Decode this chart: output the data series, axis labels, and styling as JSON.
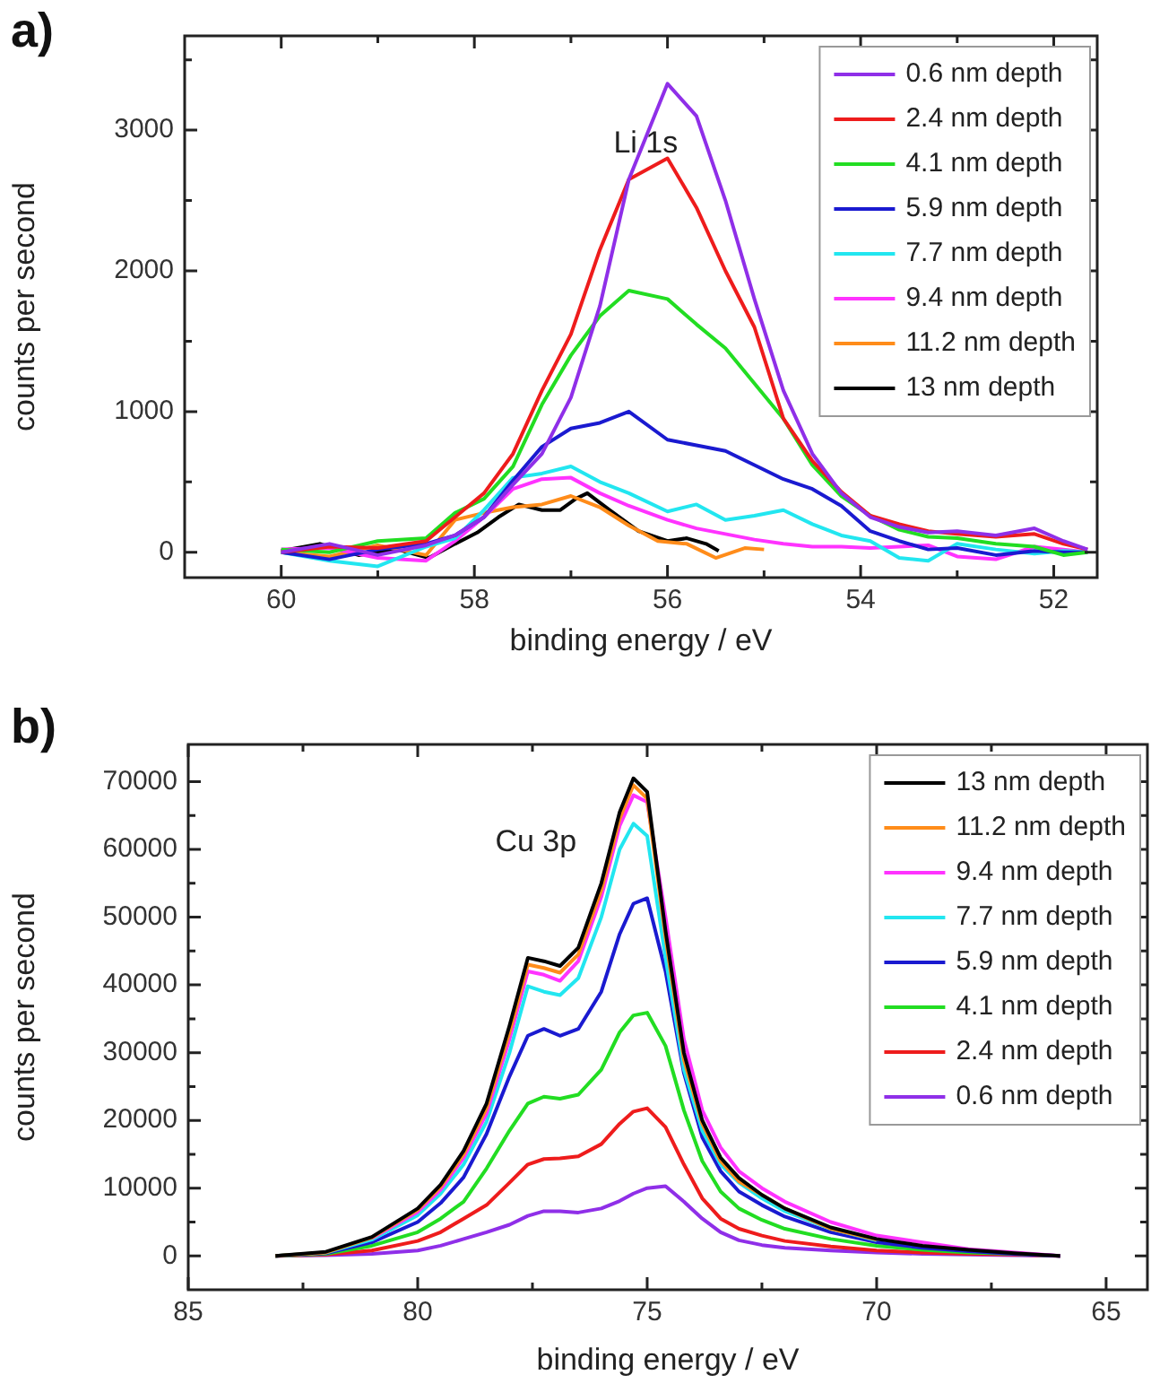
{
  "chart_data": [
    {
      "type": "line",
      "title": "a)",
      "xlabel": "binding energy / eV",
      "ylabel": "counts per second",
      "annotations": [
        "Li 1s"
      ],
      "xlim": [
        61,
        51.55
      ],
      "ylim": [
        -180,
        3670
      ],
      "xticks": [
        60,
        {
          "value": 59,
          "label": null
        },
        58,
        {
          "value": 57,
          "label": null
        },
        56,
        {
          "value": 55,
          "label": null
        },
        54,
        {
          "value": 53,
          "label": null
        },
        52
      ],
      "yticks": [
        0,
        {
          "value": 500,
          "label": null
        },
        1000,
        {
          "value": 1500,
          "label": null
        },
        2000,
        {
          "value": 2500,
          "label": null
        },
        3000,
        {
          "value": 3500,
          "label": null
        }
      ],
      "legend": "top right",
      "x": [
        60,
        59.5,
        59,
        58.5,
        58.2,
        57.9,
        57.6,
        57.3,
        57.0,
        56.7,
        56.4,
        56.0,
        55.7,
        55.4,
        55.1,
        54.8,
        54.5,
        54.2,
        53.9,
        53.6,
        53.3,
        53.0,
        52.6,
        52.2,
        51.9,
        51.65
      ],
      "series": [
        {
          "name": "0.6 nm depth",
          "color": "#8f2fe8",
          "values": [
            0,
            60,
            -20,
            50,
            120,
            250,
            480,
            700,
            1100,
            1750,
            2650,
            3330,
            3100,
            2500,
            1800,
            1150,
            700,
            420,
            250,
            180,
            140,
            150,
            120,
            170,
            80,
            20
          ]
        },
        {
          "name": "2.4 nm depth",
          "color": "#ee1c1c",
          "values": [
            0,
            40,
            30,
            80,
            250,
            420,
            700,
            1150,
            1550,
            2150,
            2650,
            2800,
            2450,
            2000,
            1600,
            950,
            650,
            430,
            260,
            200,
            150,
            130,
            110,
            130,
            60,
            20
          ]
        },
        {
          "name": "4.1 nm depth",
          "color": "#22dd22",
          "values": [
            20,
            0,
            80,
            100,
            280,
            380,
            610,
            1050,
            1400,
            1680,
            1860,
            1800,
            1620,
            1450,
            1200,
            950,
            620,
            400,
            260,
            160,
            110,
            100,
            60,
            40,
            -20,
            0
          ]
        },
        {
          "name": "5.9 nm depth",
          "color": "#1a1ad0",
          "values": [
            0,
            -50,
            20,
            60,
            120,
            250,
            510,
            750,
            880,
            920,
            1000,
            800,
            760,
            720,
            620,
            520,
            450,
            330,
            150,
            80,
            20,
            30,
            -20,
            10,
            0,
            0
          ]
        },
        {
          "name": "7.7 nm depth",
          "color": "#22e6f0",
          "values": [
            0,
            -60,
            -100,
            40,
            100,
            300,
            530,
            560,
            610,
            500,
            420,
            290,
            340,
            230,
            260,
            300,
            200,
            120,
            80,
            -40,
            -60,
            60,
            20,
            -10,
            10,
            0
          ]
        },
        {
          "name": "9.4 nm depth",
          "color": "#ff33ff",
          "values": [
            20,
            30,
            -40,
            -60,
            80,
            250,
            450,
            520,
            530,
            420,
            330,
            230,
            170,
            130,
            90,
            60,
            40,
            40,
            30,
            40,
            50,
            -30,
            -50,
            40,
            20,
            0
          ]
        },
        {
          "name": "11.2 nm depth",
          "color": "#ff8c1a",
          "x": [
            60,
            59.5,
            59,
            58.5,
            58.2,
            57.9,
            57.6,
            57.3,
            57.0,
            56.7,
            56.4,
            56.1,
            55.8,
            55.5,
            55.2,
            55.0
          ],
          "values": [
            0,
            -30,
            50,
            -20,
            230,
            280,
            320,
            340,
            400,
            320,
            190,
            80,
            60,
            -40,
            30,
            20
          ]
        },
        {
          "name": "13 nm depth",
          "color": "#000000",
          "x": [
            60,
            59.6,
            59.2,
            58.8,
            58.47,
            58.2,
            57.97,
            57.75,
            57.54,
            57.3,
            57.11,
            56.95,
            56.83,
            56.6,
            56.3,
            56.0,
            55.8,
            55.6,
            55.47
          ],
          "values": [
            10,
            60,
            -20,
            20,
            -40,
            60,
            140,
            250,
            340,
            300,
            300,
            380,
            420,
            300,
            150,
            80,
            100,
            60,
            10
          ]
        }
      ]
    },
    {
      "type": "line",
      "title": "b)",
      "xlabel": "binding energy / eV",
      "ylabel": "counts per second",
      "annotations": [
        "Cu 3p"
      ],
      "xlim": [
        85,
        64.1
      ],
      "ylim": [
        -5000,
        75500
      ],
      "xticks": [
        85,
        {
          "value": 82.5,
          "label": null
        },
        80,
        {
          "value": 77.5,
          "label": null
        },
        75,
        {
          "value": 72.5,
          "label": null
        },
        70,
        {
          "value": 67.5,
          "label": null
        },
        65
      ],
      "yticks": [
        0,
        {
          "value": 5000,
          "label": null
        },
        10000,
        {
          "value": 15000,
          "label": null
        },
        20000,
        {
          "value": 25000,
          "label": null
        },
        30000,
        {
          "value": 35000,
          "label": null
        },
        40000,
        {
          "value": 45000,
          "label": null
        },
        50000,
        {
          "value": 55000,
          "label": null
        },
        60000,
        {
          "value": 65000,
          "label": null
        },
        70000
      ],
      "legend": "top right",
      "x": [
        83.1,
        82,
        81,
        80,
        79.5,
        79,
        78.5,
        78,
        77.6,
        77.25,
        76.9,
        76.5,
        76,
        75.6,
        75.3,
        75,
        74.6,
        74.2,
        73.8,
        73.4,
        73,
        72.5,
        72,
        71,
        70,
        69,
        68,
        67,
        66
      ],
      "series": [
        {
          "name": "13 nm depth",
          "color": "#000000",
          "values": [
            0,
            600,
            2800,
            7000,
            10500,
            15500,
            22500,
            34000,
            44000,
            43500,
            42800,
            45500,
            55000,
            65500,
            70500,
            68500,
            48000,
            30000,
            20000,
            14500,
            11500,
            9000,
            7000,
            4200,
            2500,
            1500,
            900,
            400,
            0
          ]
        },
        {
          "name": "11.2 nm depth",
          "color": "#ff8c1a",
          "values": [
            0,
            500,
            2700,
            6800,
            10200,
            15000,
            21800,
            33000,
            43000,
            42500,
            41800,
            44500,
            54000,
            64500,
            69500,
            67500,
            47000,
            29000,
            19500,
            14000,
            11000,
            9000,
            7000,
            4000,
            2400,
            null,
            null,
            null,
            null
          ]
        },
        {
          "name": "9.4 nm depth",
          "color": "#ff33ff",
          "values": [
            null,
            null,
            2600,
            6500,
            9800,
            14500,
            21000,
            32000,
            42000,
            41500,
            40600,
            43500,
            53000,
            63500,
            68000,
            67000,
            50000,
            32000,
            21500,
            16000,
            12500,
            10000,
            8000,
            5000,
            3000,
            2000,
            1000,
            500,
            0
          ]
        },
        {
          "name": "7.7 nm depth",
          "color": "#22e6f0",
          "values": [
            0,
            500,
            2400,
            6000,
            9200,
            13500,
            19800,
            30000,
            39800,
            39000,
            38500,
            41000,
            50000,
            60000,
            63800,
            62000,
            44000,
            27500,
            18500,
            13500,
            10800,
            8500,
            6600,
            4000,
            2300,
            null,
            null,
            null,
            null
          ]
        },
        {
          "name": "5.9 nm depth",
          "color": "#1a1ad0",
          "values": [
            0,
            400,
            2000,
            5000,
            7800,
            11600,
            18000,
            26500,
            32500,
            33500,
            32500,
            33500,
            39000,
            47500,
            52000,
            52800,
            42000,
            27000,
            17500,
            12500,
            9500,
            7500,
            5800,
            3500,
            2000,
            1200,
            700,
            300,
            0
          ]
        },
        {
          "name": "4.1 nm depth",
          "color": "#22dd22",
          "values": [
            0,
            300,
            1500,
            3500,
            5500,
            8000,
            12900,
            18500,
            22500,
            23500,
            23200,
            23800,
            27500,
            33000,
            35500,
            35900,
            31000,
            21500,
            14000,
            9500,
            7000,
            5300,
            4000,
            2500,
            1500,
            900,
            500,
            300,
            0
          ]
        },
        {
          "name": "2.4 nm depth",
          "color": "#ee1c1c",
          "values": [
            0,
            200,
            800,
            2200,
            3500,
            5500,
            7500,
            10800,
            13500,
            14300,
            14400,
            14700,
            16500,
            19500,
            21300,
            21800,
            19000,
            13500,
            8500,
            5500,
            4000,
            3000,
            2200,
            1400,
            800,
            500,
            300,
            200,
            0
          ]
        },
        {
          "name": "0.6 nm depth",
          "color": "#8f2fe8",
          "values": [
            0,
            100,
            300,
            800,
            1500,
            2500,
            3500,
            4600,
            5900,
            6600,
            6600,
            6400,
            7000,
            8100,
            9200,
            10000,
            10300,
            8000,
            5500,
            3500,
            2300,
            1600,
            1200,
            800,
            500,
            300,
            200,
            100,
            0
          ]
        }
      ]
    }
  ]
}
